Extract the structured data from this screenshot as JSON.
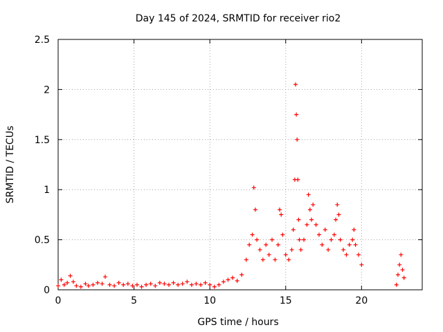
{
  "chart_data": {
    "type": "scatter",
    "title": "Day 145 of 2024, SRMTID for receiver rio2",
    "xlabel": "GPS time / hours",
    "ylabel": "SRMTID / TECUs",
    "xlim": [
      0,
      24
    ],
    "ylim": [
      0,
      2.5
    ],
    "xticks": [
      0,
      5,
      10,
      15,
      20
    ],
    "xtick_labels": [
      "0",
      "5",
      "10",
      "15",
      "20"
    ],
    "yticks": [
      0,
      0.5,
      1,
      1.5,
      2,
      2.5
    ],
    "ytick_labels": [
      "0",
      "0.5",
      "1",
      "1.5",
      "2",
      "2.5"
    ],
    "grid": true,
    "marker": "+",
    "series": [
      {
        "name": "SRMTID",
        "color": "#ff0000",
        "x": [
          0.0,
          0.2,
          0.4,
          0.6,
          0.8,
          1.0,
          1.2,
          1.5,
          1.8,
          2.0,
          2.3,
          2.6,
          2.9,
          3.1,
          3.4,
          3.7,
          4.0,
          4.3,
          4.6,
          4.9,
          5.2,
          5.5,
          5.8,
          6.1,
          6.4,
          6.7,
          7.0,
          7.3,
          7.6,
          7.9,
          8.2,
          8.5,
          8.8,
          9.1,
          9.4,
          9.7,
          10.0,
          10.3,
          10.6,
          10.9,
          11.2,
          11.5,
          11.8,
          12.1,
          12.4,
          12.6,
          12.8,
          12.9,
          13.0,
          13.1,
          13.3,
          13.5,
          13.7,
          13.9,
          14.1,
          14.3,
          14.5,
          14.6,
          14.7,
          14.8,
          15.0,
          15.2,
          15.4,
          15.5,
          15.6,
          15.65,
          15.7,
          15.75,
          15.8,
          15.85,
          15.9,
          16.0,
          16.2,
          16.4,
          16.5,
          16.6,
          16.7,
          16.8,
          17.0,
          17.2,
          17.4,
          17.6,
          17.8,
          18.0,
          18.2,
          18.3,
          18.4,
          18.5,
          18.6,
          18.8,
          19.0,
          19.2,
          19.4,
          19.5,
          19.6,
          19.8,
          20.0,
          22.3,
          22.4,
          22.5,
          22.6,
          22.7,
          22.8
        ],
        "y": [
          0.04,
          0.1,
          0.05,
          0.07,
          0.14,
          0.08,
          0.04,
          0.03,
          0.06,
          0.04,
          0.05,
          0.07,
          0.06,
          0.13,
          0.05,
          0.04,
          0.07,
          0.05,
          0.06,
          0.04,
          0.05,
          0.03,
          0.05,
          0.06,
          0.04,
          0.07,
          0.06,
          0.05,
          0.07,
          0.05,
          0.06,
          0.08,
          0.05,
          0.06,
          0.05,
          0.07,
          0.05,
          0.03,
          0.05,
          0.08,
          0.1,
          0.12,
          0.09,
          0.15,
          0.3,
          0.45,
          0.55,
          1.02,
          0.8,
          0.5,
          0.4,
          0.3,
          0.45,
          0.35,
          0.5,
          0.3,
          0.45,
          0.8,
          0.75,
          0.55,
          0.35,
          0.3,
          0.4,
          0.6,
          1.1,
          2.05,
          1.75,
          1.5,
          1.1,
          0.7,
          0.5,
          0.4,
          0.5,
          0.65,
          0.95,
          0.8,
          0.7,
          0.85,
          0.65,
          0.55,
          0.45,
          0.6,
          0.4,
          0.5,
          0.55,
          0.7,
          0.85,
          0.75,
          0.5,
          0.4,
          0.35,
          0.45,
          0.5,
          0.6,
          0.45,
          0.35,
          0.25,
          0.05,
          0.15,
          0.25,
          0.35,
          0.2,
          0.12
        ]
      }
    ]
  }
}
